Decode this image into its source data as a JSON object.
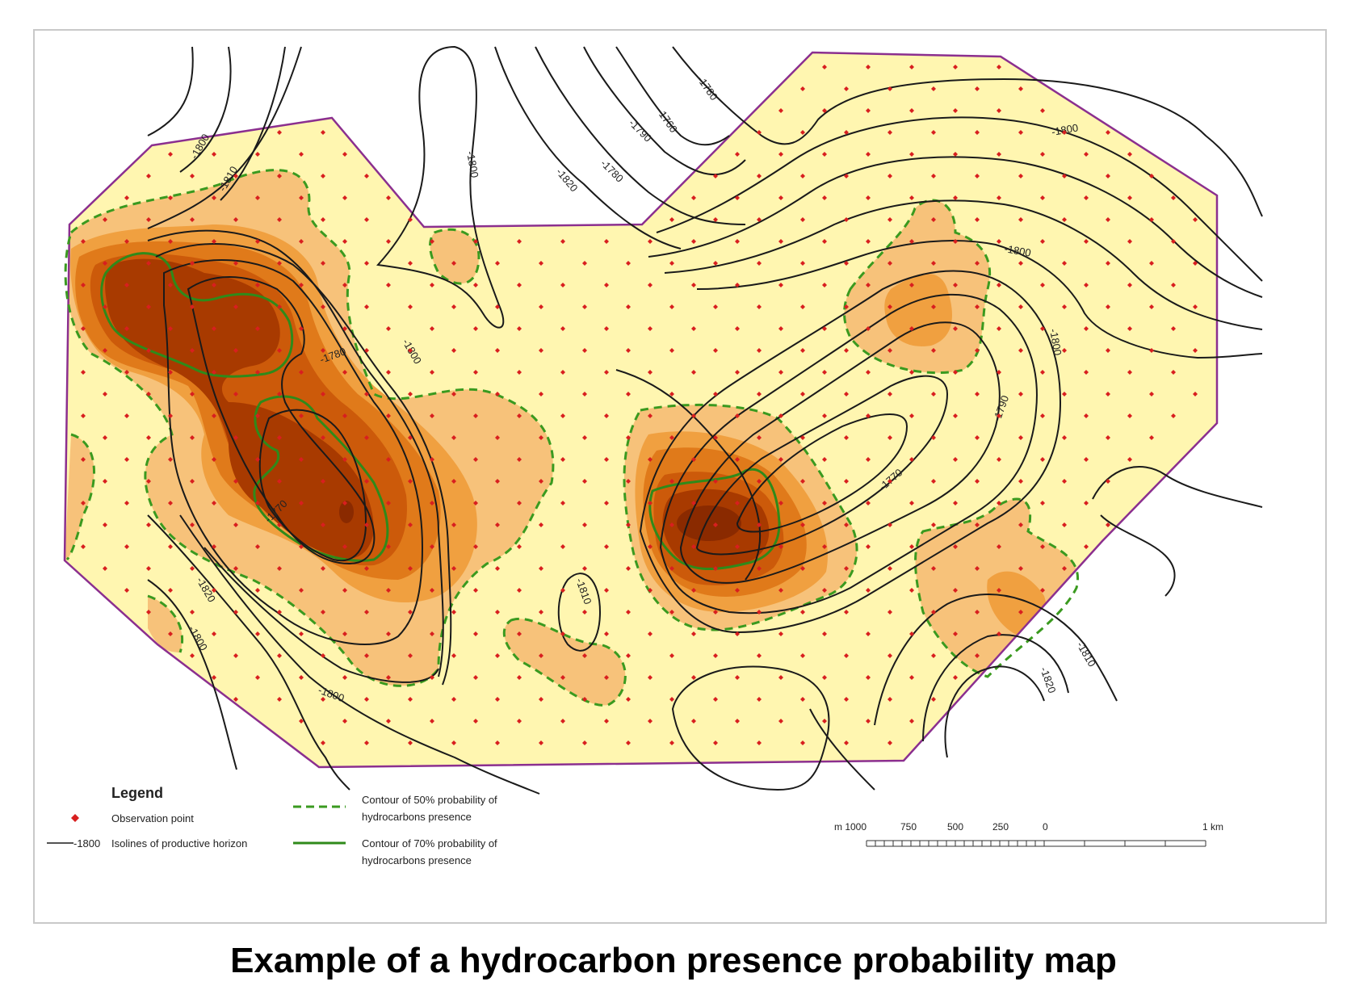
{
  "caption": "Example of a hydrocarbon presence probability map",
  "colors": {
    "area_fill": "#fff6b0",
    "boundary": "#8b2f8f",
    "prob_low": "#f7c27a",
    "prob_mid": "#f0a040",
    "prob_high": "#e07a1a",
    "prob_higher": "#cc5a0a",
    "prob_max": "#a83a00",
    "observation_point": "#d81f1f",
    "contour_50": "#3a9a1f",
    "contour_70": "#2f8a1a",
    "isoline": "#1a1a1a"
  },
  "legend": {
    "title": "Legend",
    "observation": "Observation point",
    "isoline_sample": "-1800",
    "isoline": "Isolines of productive horizon",
    "contour50_line1": "Contour of 50% probability of",
    "contour50_line2": "hydrocarbons presence",
    "contour70_line1": "Contour of 70% probability of",
    "contour70_line2": "hydrocarbons presence"
  },
  "scale_bar": {
    "labels": [
      "m 1000",
      "750",
      "500",
      "250",
      "0",
      "1 km"
    ]
  },
  "isoline_labels": [
    "-1800",
    "-1810",
    "-1820",
    "-1800",
    "-1770",
    "-1780",
    "-1800",
    "-1800",
    "-1800",
    "-1810",
    "-1820",
    "-1780",
    "-1790",
    "-1760",
    "-1780",
    "-1790",
    "-1770",
    "-1800",
    "-1800",
    "-1810",
    "-1820",
    "-1800"
  ]
}
